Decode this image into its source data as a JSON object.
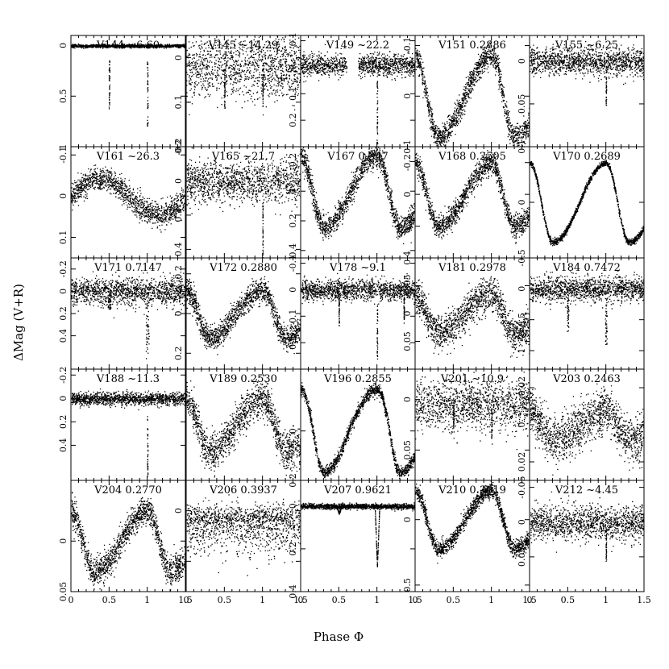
{
  "figure": {
    "xlabel": "Phase Φ",
    "ylabel": "ΔMag (V+R)"
  },
  "chart_data": {
    "type": "scatter",
    "grid": false,
    "xlabel": "Phase Φ",
    "ylabel": "ΔMag (V+R)",
    "xlim": [
      0,
      1.5
    ],
    "x_ticks": [
      0,
      0.5,
      1,
      1.5
    ],
    "x_tick_labels": [
      "0",
      "0.5",
      "1",
      "1.5"
    ],
    "y_inverted": true,
    "panels": [
      {
        "label": "V144 ~6.60",
        "model": "eclipse",
        "ylim": [
          -0.1,
          1.0
        ],
        "y_ticks": [
          0,
          0.5,
          1
        ],
        "y_tick_labels": [
          "0",
          "0.5",
          "1"
        ],
        "params": {
          "base": 0.0,
          "noise": 0.008,
          "dip": 0.8,
          "width": 0.006,
          "secondary": 0.8
        }
      },
      {
        "label": "V145 ~14.29",
        "model": "scatter",
        "ylim": [
          -0.05,
          0.2
        ],
        "y_ticks": [
          0,
          0.1,
          0.2
        ],
        "y_tick_labels": [
          "0",
          "0.1",
          "0.2"
        ],
        "params": {
          "base": 0.02,
          "noise": 0.035,
          "dip": 0.09,
          "width": 0.004,
          "secondary": 0.8
        }
      },
      {
        "label": "V149 ~22.2",
        "model": "eclipse",
        "ylim": [
          -0.12,
          0.3
        ],
        "y_ticks": [
          -0.1,
          0,
          0.1,
          0.2
        ],
        "y_tick_labels": [
          "-0.1",
          "0",
          "0.1",
          "0.2"
        ],
        "params": {
          "base": -0.01,
          "noise": 0.02,
          "dip": 0.3,
          "width": 0.004,
          "secondary": 0.0,
          "gap": [
            0.6,
            0.75
          ]
        }
      },
      {
        "label": "V151 0.2886",
        "model": "rrc",
        "ylim": [
          -0.12,
          0.1
        ],
        "y_ticks": [
          -0.1,
          0,
          0.1
        ],
        "y_tick_labels": [
          "-0.1",
          "0",
          "0.1"
        ],
        "params": {
          "mean": 0.0,
          "amp": 0.08,
          "noise": 0.012
        }
      },
      {
        "label": "V155 ~6.25",
        "model": "eclipse",
        "ylim": [
          -0.03,
          0.1
        ],
        "y_ticks": [
          0,
          0.05,
          0.1
        ],
        "y_tick_labels": [
          "0",
          "0.05",
          "0.1"
        ],
        "params": {
          "base": 0.0,
          "noise": 0.008,
          "dip": 0.05,
          "width": 0.004,
          "secondary": 0.0
        }
      },
      {
        "label": "V161 ~26.3",
        "model": "long",
        "ylim": [
          -0.12,
          0.15
        ],
        "y_ticks": [
          -0.1,
          0,
          0.1
        ],
        "y_tick_labels": [
          "-0.1",
          "0",
          "0.1"
        ],
        "params": {
          "mean": 0.0,
          "amp": 0.045,
          "noise": 0.015,
          "dip": 0.12,
          "width": 0.005
        }
      },
      {
        "label": "V165 ~21.7",
        "model": "scatter",
        "ylim": [
          -0.2,
          0.45
        ],
        "y_ticks": [
          -0.2,
          0,
          0.2,
          0.4
        ],
        "y_tick_labels": [
          "-0.2",
          "0",
          "0.2",
          "0.4"
        ],
        "params": {
          "base": 0.0,
          "noise": 0.06,
          "dip": 0.45,
          "width": 0.004,
          "secondary": 0.0
        }
      },
      {
        "label": "V167 0.347",
        "model": "rrc",
        "ylim": [
          -0.3,
          0.45
        ],
        "y_ticks": [
          -0.2,
          0,
          0.2,
          0.4
        ],
        "y_tick_labels": [
          "-0.2",
          "0",
          "0.2",
          "0.4"
        ],
        "params": {
          "mean": 0.0,
          "amp": 0.24,
          "noise": 0.04
        }
      },
      {
        "label": "V168 0.2505",
        "model": "rrc",
        "ylim": [
          -0.3,
          0.4
        ],
        "y_ticks": [
          -0.2,
          0,
          0.2,
          0.4
        ],
        "y_tick_labels": [
          "-0.2",
          "0",
          "0.2",
          "0.4"
        ],
        "params": {
          "mean": 0.0,
          "amp": 0.2,
          "noise": 0.035
        }
      },
      {
        "label": "V170 0.2689",
        "model": "rrc",
        "ylim": [
          -0.45,
          0.45
        ],
        "y_ticks": [
          0
        ],
        "y_tick_labels": [
          "0"
        ],
        "params": {
          "mean": 0.0,
          "amp": 0.32,
          "noise": 0.012
        }
      },
      {
        "label": "V171 0.7147",
        "model": "eclipse",
        "ylim": [
          -0.3,
          0.7
        ],
        "y_ticks": [
          -0.2,
          0,
          0.2,
          0.4
        ],
        "y_tick_labels": [
          "-0.2",
          "0",
          "0.2",
          "0.4"
        ],
        "params": {
          "base": 0.0,
          "noise": 0.06,
          "dip": 0.55,
          "width": 0.02,
          "secondary": 0.25
        }
      },
      {
        "label": "V172 0.2880",
        "model": "rrc",
        "ylim": [
          -0.28,
          0.28
        ],
        "y_ticks": [
          -0.2,
          0,
          0.2
        ],
        "y_tick_labels": [
          "-0.2",
          "0",
          "0.2"
        ],
        "params": {
          "mean": 0.0,
          "amp": 0.12,
          "noise": 0.03
        }
      },
      {
        "label": "V178 ~9.1",
        "model": "eclipse",
        "ylim": [
          -0.12,
          0.3
        ],
        "y_ticks": [
          -0.1,
          0,
          0.1,
          0.2
        ],
        "y_tick_labels": [
          "-0.1",
          "0",
          "0.1",
          "0.2"
        ],
        "params": {
          "base": 0.0,
          "noise": 0.02,
          "dip": 0.25,
          "width": 0.004,
          "secondary": 0.5,
          "tertiary": true
        }
      },
      {
        "label": "V181 0.2978",
        "model": "rrc",
        "ylim": [
          -0.1,
          0.1
        ],
        "y_ticks": [
          -0.05,
          0,
          0.05
        ],
        "y_tick_labels": [
          "-0.05",
          "0",
          "0.05"
        ],
        "params": {
          "mean": 0.0,
          "amp": 0.035,
          "noise": 0.015
        }
      },
      {
        "label": "V184 0.7472",
        "model": "eclipse",
        "ylim": [
          -0.5,
          1.3
        ],
        "y_ticks": [
          -0.5,
          0,
          0.5,
          1
        ],
        "y_tick_labels": [
          "-0.5",
          "0",
          "0.5",
          "1"
        ],
        "params": {
          "base": 0.0,
          "noise": 0.1,
          "dip": 0.9,
          "width": 0.012,
          "secondary": 0.75
        }
      },
      {
        "label": "V188 ~11.3",
        "model": "eclipse",
        "ylim": [
          -0.25,
          0.7
        ],
        "y_ticks": [
          -0.2,
          0,
          0.2,
          0.4
        ],
        "y_tick_labels": [
          "-0.2",
          "0",
          "0.2",
          "0.4"
        ],
        "params": {
          "base": 0.0,
          "noise": 0.025,
          "dip": 0.65,
          "width": 0.004,
          "secondary": 0.0
        }
      },
      {
        "label": "V189 0.2530",
        "model": "rrc",
        "ylim": [
          -0.15,
          0.15
        ],
        "y_ticks": [
          0.2
        ],
        "y_tick_labels": [
          "0.2"
        ],
        "params": {
          "mean": 0.0,
          "amp": 0.07,
          "noise": 0.025
        }
      },
      {
        "label": "V196 0.2855",
        "model": "rrc",
        "ylim": [
          -0.25,
          0.2
        ],
        "y_ticks": [
          0,
          0.2
        ],
        "y_tick_labels": [
          "0",
          "0.2"
        ],
        "params": {
          "mean": -0.02,
          "amp": 0.15,
          "noise": 0.012,
          "deep": true
        }
      },
      {
        "label": "V201 ~10.9",
        "model": "scatter",
        "ylim": [
          -0.03,
          0.08
        ],
        "y_ticks": [
          0,
          0.05
        ],
        "y_tick_labels": [
          "0",
          "0.05"
        ],
        "params": {
          "base": 0.005,
          "noise": 0.012,
          "dip": 0.03,
          "width": 0.004,
          "secondary": 0.6
        }
      },
      {
        "label": "V203 0.2463",
        "model": "rrc",
        "ylim": [
          -0.03,
          0.03
        ],
        "y_ticks": [
          -0.02,
          0,
          0.02
        ],
        "y_tick_labels": [
          "-0.02",
          "0",
          "0.02"
        ],
        "params": {
          "mean": 0.0,
          "amp": 0.008,
          "noise": 0.006
        }
      },
      {
        "label": "V204 0.2770",
        "model": "rrc",
        "ylim": [
          -0.06,
          0.05
        ],
        "y_ticks": [
          0,
          0.05
        ],
        "y_tick_labels": [
          "0",
          "0.05"
        ],
        "params": {
          "mean": 0.0,
          "amp": 0.03,
          "noise": 0.007
        }
      },
      {
        "label": "V206 0.3937",
        "model": "scatter",
        "ylim": [
          -0.3,
          0.8
        ],
        "y_ticks": [
          0,
          0.5
        ],
        "y_tick_labels": [
          "0",
          "0.5"
        ],
        "params": {
          "base": 0.1,
          "noise": 0.13,
          "dip": 0.0,
          "width": 0.004,
          "secondary": 0.0,
          "skew": true
        }
      },
      {
        "label": "V207 0.9621",
        "model": "eclipse",
        "ylim": [
          -0.12,
          0.4
        ],
        "y_ticks": [
          0,
          0.2,
          0.4
        ],
        "y_tick_labels": [
          "0",
          "0.2",
          "0.4"
        ],
        "params": {
          "base": 0.0,
          "noise": 0.006,
          "dip": 0.28,
          "width": 0.03,
          "secondary": 0.12,
          "vshape": true
        }
      },
      {
        "label": "V210 0.3919",
        "model": "rrc",
        "ylim": [
          -0.3,
          0.55
        ],
        "y_ticks": [
          0,
          0.5
        ],
        "y_tick_labels": [
          "0",
          "0.5"
        ],
        "params": {
          "mean": 0.0,
          "amp": 0.22,
          "noise": 0.03
        }
      },
      {
        "label": "V212 ~4.45",
        "model": "eclipse",
        "ylim": [
          -0.06,
          0.1
        ],
        "y_ticks": [
          -0.05,
          0,
          0.05
        ],
        "y_tick_labels": [
          "-0.05",
          "0",
          "0.05"
        ],
        "params": {
          "base": 0.0,
          "noise": 0.012,
          "dip": 0.05,
          "width": 0.004,
          "secondary": 0.0
        }
      }
    ]
  }
}
